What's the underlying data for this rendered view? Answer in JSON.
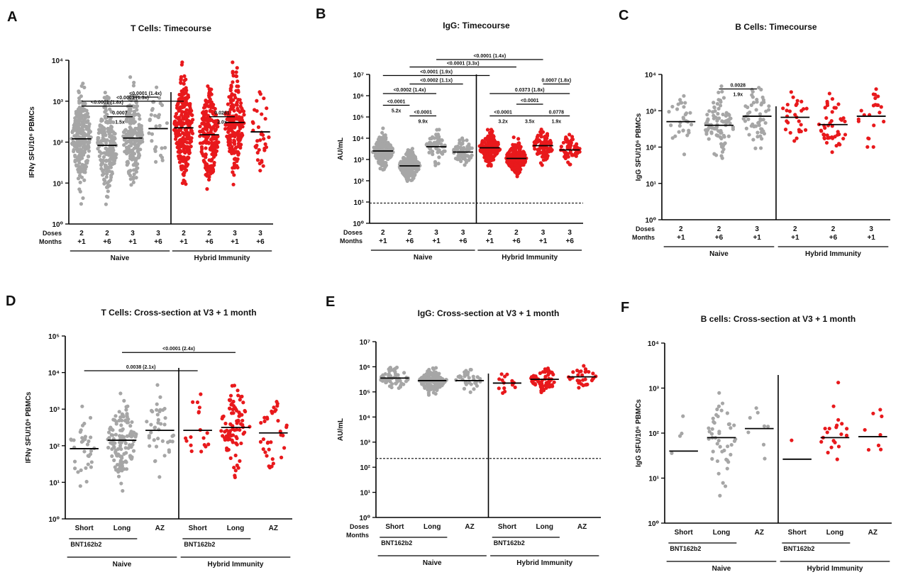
{
  "colors": {
    "naive": "#a6a6a6",
    "hybrid": "#e8191c",
    "axis": "#000000"
  },
  "chart_data": [
    {
      "letter": "A",
      "title": "T Cells: Timecourse",
      "type": "scatter",
      "ylabel": "IFNγ SFU/10⁶ PBMCs",
      "yscale": "log",
      "ylim": [
        0,
        4
      ],
      "ytick_labels": [
        "10⁰",
        "10¹",
        "10²",
        "10³",
        "10⁴"
      ],
      "row_labels": [
        "Doses",
        "Months"
      ],
      "categories": [
        {
          "dose": "2",
          "month": "+1",
          "group": "naive",
          "median": 2.08
        },
        {
          "dose": "2",
          "month": "+6",
          "group": "naive",
          "median": 1.92
        },
        {
          "dose": "3",
          "month": "+1",
          "group": "naive",
          "median": 2.1
        },
        {
          "dose": "3",
          "month": "+6",
          "group": "naive",
          "median": 2.33
        },
        {
          "dose": "2",
          "month": "+1",
          "group": "hybrid",
          "median": 2.35
        },
        {
          "dose": "2",
          "month": "+6",
          "group": "hybrid",
          "median": 2.18
        },
        {
          "dose": "3",
          "month": "+1",
          "group": "hybrid",
          "median": 2.48
        },
        {
          "dose": "3",
          "month": "+6",
          "group": "hybrid",
          "median": 2.25
        }
      ],
      "groups": [
        {
          "label": "Naive",
          "from": 0,
          "to": 3
        },
        {
          "label": "Hybrid Immunity",
          "from": 4,
          "to": 7
        }
      ],
      "divider_after": 3,
      "brackets": [
        {
          "from": 2,
          "to": 3,
          "y": 3.1,
          "label": "<0.0001 (1.4x)"
        },
        {
          "from": 0,
          "to": 4,
          "y": 3.0,
          "label": "<0.0001 (1.3x)"
        },
        {
          "from": 0,
          "to": 2,
          "y": 2.88,
          "label": "<0.0001 (1.8x)"
        },
        {
          "from": 1,
          "to": 2,
          "y": 2.62,
          "label": "0.0007",
          "sub": "1.5x"
        },
        {
          "from": 5,
          "to": 6,
          "y": 2.62,
          "label": "0.0261",
          "sub": "2.0x"
        }
      ]
    },
    {
      "letter": "B",
      "title": "IgG: Timecourse",
      "type": "scatter",
      "ylabel": "AU/mL",
      "yscale": "log",
      "ylim": [
        0,
        7
      ],
      "ytick_labels": [
        "10⁰",
        "10¹",
        "10²",
        "10³",
        "10⁴",
        "10⁵",
        "10⁶",
        "10⁷"
      ],
      "threshold": 0.95,
      "row_labels": [
        "Doses",
        "Months"
      ],
      "categories": [
        {
          "dose": "2",
          "month": "+1",
          "group": "naive",
          "median": 3.4
        },
        {
          "dose": "2",
          "month": "+6",
          "group": "naive",
          "median": 2.7
        },
        {
          "dose": "3",
          "month": "+1",
          "group": "naive",
          "median": 3.6
        },
        {
          "dose": "3",
          "month": "+6",
          "group": "naive",
          "median": 3.35
        },
        {
          "dose": "2",
          "month": "+1",
          "group": "hybrid",
          "median": 3.55
        },
        {
          "dose": "2",
          "month": "+6",
          "group": "hybrid",
          "median": 3.05
        },
        {
          "dose": "3",
          "month": "+1",
          "group": "hybrid",
          "median": 3.65
        },
        {
          "dose": "3",
          "month": "+6",
          "group": "hybrid",
          "median": 3.45
        }
      ],
      "groups": [
        {
          "label": "Naive",
          "from": 0,
          "to": 3
        },
        {
          "label": "Hybrid Immunity",
          "from": 4,
          "to": 7
        }
      ],
      "divider_after": 3,
      "brackets": [
        {
          "from": 2,
          "to": 6,
          "y": 7.7,
          "label": "<0.0001 (1.4x)"
        },
        {
          "from": 1,
          "to": 5,
          "y": 7.35,
          "label": "<0.0001 (3.3x)"
        },
        {
          "from": 0,
          "to": 4,
          "y": 6.95,
          "label": "<0.0001 (1.9x)"
        },
        {
          "from": 1,
          "to": 3,
          "y": 6.55,
          "label": "<0.0002 (1.1x)"
        },
        {
          "from": 0,
          "to": 2,
          "y": 6.1,
          "label": "<0.0002 (1.4x)"
        },
        {
          "from": 0,
          "to": 1,
          "y": 5.55,
          "label": "<0.0001",
          "sub": "5.2x"
        },
        {
          "from": 1,
          "to": 2,
          "y": 5.05,
          "label": "<0.0001",
          "sub": "9.9x"
        },
        {
          "from": 6,
          "to": 7,
          "y": 6.55,
          "label": "0.0007 (1.8x)"
        },
        {
          "from": 4,
          "to": 7,
          "y": 6.1,
          "label": "0.0373 (1.8x)"
        },
        {
          "from": 5,
          "to": 6,
          "y": 5.6,
          "label": "<0.0001"
        },
        {
          "from": 4,
          "to": 5,
          "y": 5.05,
          "label": "<0.0001",
          "sub": "3.2x"
        },
        {
          "from": 5,
          "to": 6,
          "y": 5.05,
          "label": "",
          "sub": "3.5x"
        },
        {
          "from": 6,
          "to": 7,
          "y": 5.05,
          "label": "0.0778",
          "sub": "1.9x"
        }
      ]
    },
    {
      "letter": "C",
      "title": "B Cells: Timecourse",
      "type": "scatter",
      "ylabel": "IgG SFU/10⁶ PBMCs",
      "yscale": "log",
      "ylim": [
        0,
        4
      ],
      "ytick_labels": [
        "10⁰",
        "10¹",
        "10²",
        "10³",
        "10⁴"
      ],
      "row_labels": [
        "Doses",
        "Months"
      ],
      "categories": [
        {
          "dose": "2",
          "month": "+1",
          "group": "naive",
          "median": 2.7
        },
        {
          "dose": "2",
          "month": "+6",
          "group": "naive",
          "median": 2.6
        },
        {
          "dose": "3",
          "month": "+1",
          "group": "naive",
          "median": 2.85
        },
        {
          "dose": "2",
          "month": "+1",
          "group": "hybrid",
          "median": 2.82
        },
        {
          "dose": "2",
          "month": "+6",
          "group": "hybrid",
          "median": 2.62
        },
        {
          "dose": "3",
          "month": "+1",
          "group": "hybrid",
          "median": 2.85
        }
      ],
      "groups": [
        {
          "label": "Naive",
          "from": 0,
          "to": 2
        },
        {
          "label": "Hybrid Immunity",
          "from": 3,
          "to": 5
        }
      ],
      "divider_after": 2,
      "brackets": [
        {
          "from": 1,
          "to": 2,
          "y": 3.6,
          "label": "0.0028",
          "sub": "1.9x"
        }
      ]
    },
    {
      "letter": "D",
      "title": "T Cells: Cross-section at V3 + 1 month",
      "type": "scatter",
      "ylabel": "IFNγ SFU/10⁶ PBMCs",
      "yscale": "log",
      "ylim": [
        0,
        5
      ],
      "ytick_labels": [
        "10⁰",
        "10¹",
        "10²",
        "10³",
        "10⁴",
        "10⁵"
      ],
      "row_labels": [],
      "categories": [
        {
          "label": "Short",
          "group": "naive",
          "median": 1.92
        },
        {
          "label": "Long",
          "group": "naive",
          "median": 2.15
        },
        {
          "label": "AZ",
          "group": "naive",
          "median": 2.42
        },
        {
          "label": "Short",
          "group": "hybrid",
          "median": 2.42
        },
        {
          "label": "Long",
          "group": "hybrid",
          "median": 2.5
        },
        {
          "label": "AZ",
          "group": "hybrid",
          "median": 2.35
        }
      ],
      "vaccine_groups": [
        {
          "label": "BNT162b2",
          "from": 0,
          "to": 1
        },
        {
          "label": "BNT162b2",
          "from": 3,
          "to": 4
        }
      ],
      "groups": [
        {
          "label": "Naive",
          "from": 0,
          "to": 2
        },
        {
          "label": "Hybrid Immunity",
          "from": 3,
          "to": 5
        }
      ],
      "divider_after": 2,
      "brackets": [
        {
          "from": 1,
          "to": 4,
          "y": 4.55,
          "label": "<0.0001 (2.4x)"
        },
        {
          "from": 0,
          "to": 3,
          "y": 4.05,
          "label": "0.0038 (2.1x)"
        }
      ]
    },
    {
      "letter": "E",
      "title": "IgG: Cross-section at V3 + 1 month",
      "type": "scatter",
      "ylabel": "AU/mL",
      "yscale": "log",
      "ylim": [
        0,
        7
      ],
      "ytick_labels": [
        "10⁰",
        "10¹",
        "10²",
        "10³",
        "10⁴",
        "10⁵",
        "10⁶",
        "10⁷"
      ],
      "threshold": 2.35,
      "row_labels": [
        "Doses",
        "Months"
      ],
      "categories": [
        {
          "label": "Short",
          "group": "naive",
          "median": 5.55
        },
        {
          "label": "Long",
          "group": "naive",
          "median": 5.45
        },
        {
          "label": "AZ",
          "group": "naive",
          "median": 5.45
        },
        {
          "label": "Short",
          "group": "hybrid",
          "median": 5.35
        },
        {
          "label": "Long",
          "group": "hybrid",
          "median": 5.5
        },
        {
          "label": "AZ",
          "group": "hybrid",
          "median": 5.6
        }
      ],
      "vaccine_groups": [
        {
          "label": "BNT162b2",
          "from": 0,
          "to": 1
        },
        {
          "label": "BNT162b2",
          "from": 3,
          "to": 4
        }
      ],
      "groups": [
        {
          "label": "Naive",
          "from": 0,
          "to": 2
        },
        {
          "label": "Hybrid Immunity",
          "from": 3,
          "to": 5
        }
      ],
      "divider_after": 2,
      "brackets": []
    },
    {
      "letter": "F",
      "title": "B cells: Cross-section at V3 + 1 month",
      "type": "scatter",
      "ylabel": "IgG SFU/10⁶ PBMCs",
      "yscale": "log",
      "ylim": [
        0,
        4
      ],
      "ytick_labels": [
        "10⁰",
        "10¹",
        "10²",
        "10³",
        "10⁴"
      ],
      "row_labels": [],
      "categories": [
        {
          "label": "Short",
          "group": "naive",
          "median": 1.6
        },
        {
          "label": "Long",
          "group": "naive",
          "median": 1.9
        },
        {
          "label": "AZ",
          "group": "naive",
          "median": 2.1
        },
        {
          "label": "Short",
          "group": "hybrid",
          "median": 1.42
        },
        {
          "label": "Long",
          "group": "hybrid",
          "median": 1.9
        },
        {
          "label": "AZ",
          "group": "hybrid",
          "median": 1.92
        }
      ],
      "vaccine_groups": [
        {
          "label": "BNT162b2",
          "from": 0,
          "to": 1
        },
        {
          "label": "BNT162b2",
          "from": 3,
          "to": 4
        }
      ],
      "groups": [
        {
          "label": "Naive",
          "from": 0,
          "to": 2
        },
        {
          "label": "Hybrid Immunity",
          "from": 3,
          "to": 5
        }
      ],
      "divider_after": 2,
      "brackets": []
    }
  ]
}
